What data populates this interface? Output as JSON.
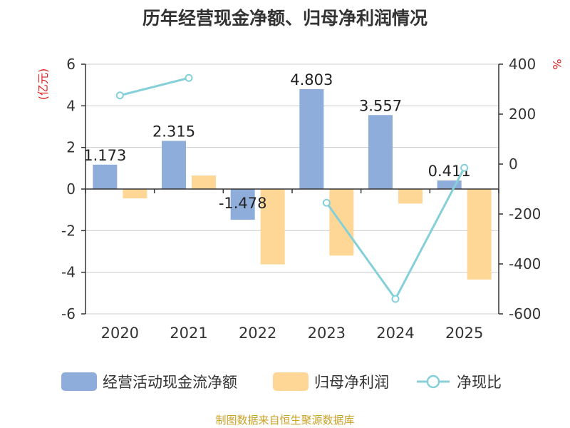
{
  "title": "历年经营现金净额、归母净利润情况",
  "source": "制图数据来自恒生聚源数据库",
  "colors": {
    "cash_flow": "#8eadda",
    "net_profit": "#fed797",
    "ratio": "#85d0d8",
    "axis_label_red": "#dd2222"
  },
  "chart_data": {
    "type": "bar",
    "categories": [
      "2020",
      "2021",
      "2022",
      "2023",
      "2024",
      "2025"
    ],
    "series": [
      {
        "name": "经营活动现金流净额",
        "type": "bar",
        "axis": "left",
        "values": [
          1.173,
          2.315,
          -1.478,
          4.803,
          3.557,
          0.411
        ],
        "labels": [
          "1.173",
          "2.315",
          "-1.478",
          "4.803",
          "3.557",
          "0.411"
        ]
      },
      {
        "name": "归母净利润",
        "type": "bar",
        "axis": "left",
        "values": [
          -0.45,
          0.65,
          -3.62,
          -3.2,
          -0.7,
          -4.35
        ]
      },
      {
        "name": "净现比",
        "type": "line",
        "axis": "right",
        "values": [
          275,
          345,
          null,
          -155,
          -540,
          -15
        ]
      }
    ],
    "y_left": {
      "label": "(亿元)",
      "range": [
        -6,
        6
      ],
      "ticks": [
        "6",
        "4",
        "2",
        "0",
        "-2",
        "-4",
        "-6"
      ]
    },
    "y_right": {
      "label": "%",
      "range": [
        -600,
        400
      ],
      "ticks": [
        "400",
        "200",
        "0",
        "-200",
        "-400",
        "-600"
      ]
    },
    "grid": true,
    "legend_position": "bottom"
  }
}
